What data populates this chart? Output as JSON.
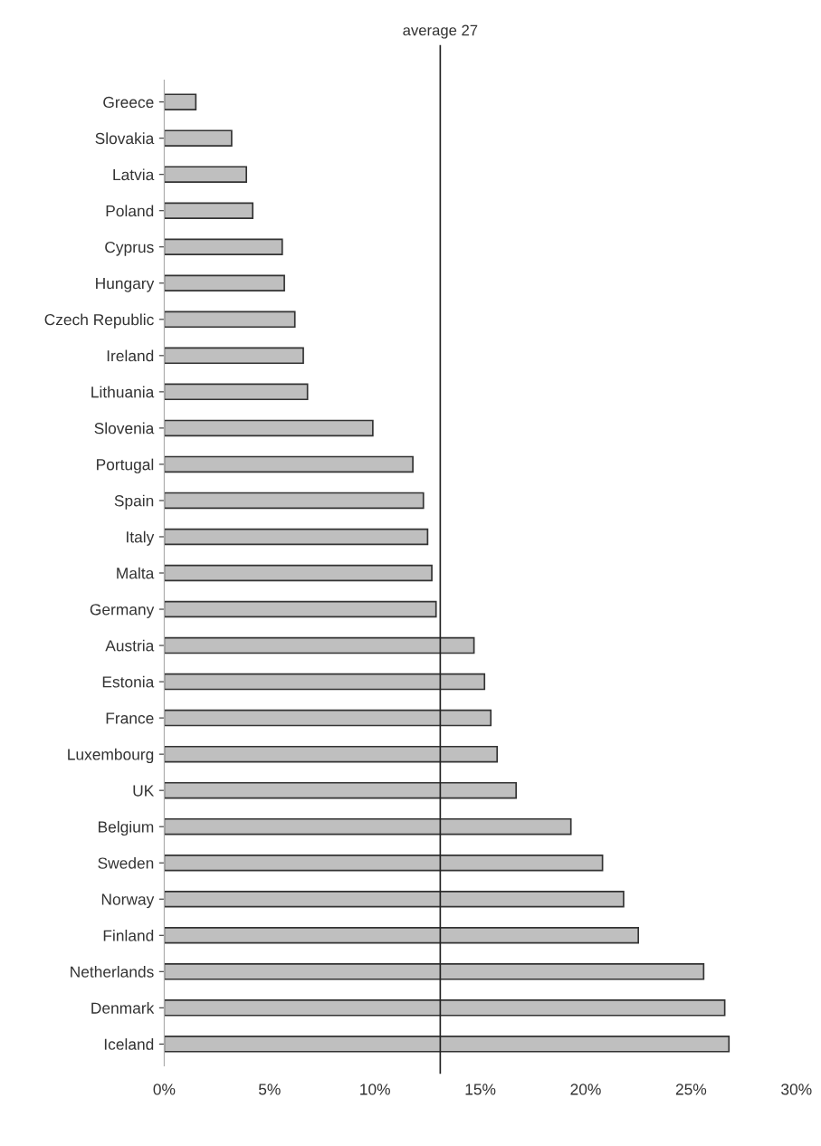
{
  "chart_data": {
    "type": "bar",
    "orientation": "horizontal",
    "categories": [
      "Greece",
      "Slovakia",
      "Latvia",
      "Poland",
      "Cyprus",
      "Hungary",
      "Czech Republic",
      "Ireland",
      "Lithuania",
      "Slovenia",
      "Portugal",
      "Spain",
      "Italy",
      "Malta",
      "Germany",
      "Austria",
      "Estonia",
      "France",
      "Luxembourg",
      "UK",
      "Belgium",
      "Sweden",
      "Norway",
      "Finland",
      "Netherlands",
      "Denmark",
      "Iceland"
    ],
    "values": [
      1.5,
      3.2,
      3.9,
      4.2,
      5.6,
      5.7,
      6.2,
      6.6,
      6.8,
      9.9,
      11.8,
      12.3,
      12.5,
      12.7,
      12.9,
      14.7,
      15.2,
      15.5,
      15.8,
      16.7,
      19.3,
      20.8,
      21.8,
      22.5,
      25.6,
      26.6,
      26.8
    ],
    "color": "#bfbfbf",
    "xlim": [
      0,
      30
    ],
    "xticks": [
      {
        "value": 0,
        "label": "0%"
      },
      {
        "value": 5,
        "label": "5%"
      },
      {
        "value": 10,
        "label": "10%"
      },
      {
        "value": 15,
        "label": "15%"
      },
      {
        "value": 20,
        "label": "20%"
      },
      {
        "value": 25,
        "label": "25%"
      },
      {
        "value": 30,
        "label": "30%"
      }
    ],
    "ref_lines": [
      {
        "axis": "x",
        "value": 13.1,
        "label": "average 27",
        "color": "#222222"
      }
    ],
    "grid": false,
    "legend": false
  }
}
